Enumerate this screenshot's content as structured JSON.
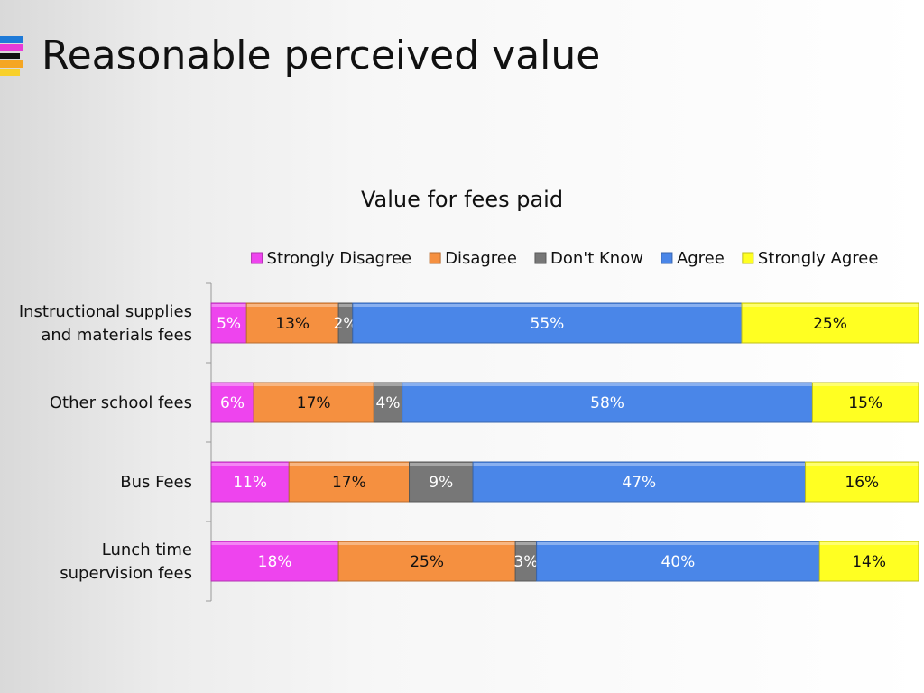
{
  "slide": {
    "title": "Reasonable perceived value"
  },
  "chart_data": {
    "type": "bar",
    "orientation": "horizontal",
    "stacked": true,
    "normalized": true,
    "title": "Value for fees paid",
    "legend_position": "top",
    "categories": [
      "Instructional supplies\nand materials fees",
      "Other school fees",
      "Bus Fees",
      "Lunch time\nsupervision fees"
    ],
    "series": [
      {
        "name": "Strongly Disagree",
        "color": "#ee44ee",
        "values": [
          5,
          6,
          11,
          18
        ],
        "labels": [
          "5%",
          "6%",
          "11%",
          "18%"
        ]
      },
      {
        "name": "Disagree",
        "color": "#f59040",
        "values": [
          13,
          17,
          17,
          25
        ],
        "labels": [
          "13%",
          "17%",
          "17%",
          "25%"
        ]
      },
      {
        "name": "Don't Know",
        "color": "#777777",
        "values": [
          2,
          4,
          9,
          3
        ],
        "labels": [
          "2%",
          "4%",
          "9%",
          "3%"
        ]
      },
      {
        "name": "Agree",
        "color": "#4a86e8",
        "values": [
          55,
          58,
          47,
          40
        ],
        "labels": [
          "55%",
          "58%",
          "47%",
          "40%"
        ]
      },
      {
        "name": "Strongly Agree",
        "color": "#ffff22",
        "values": [
          25,
          15,
          16,
          14
        ],
        "labels": [
          "25%",
          "15%",
          "16%",
          "14%"
        ]
      }
    ]
  }
}
